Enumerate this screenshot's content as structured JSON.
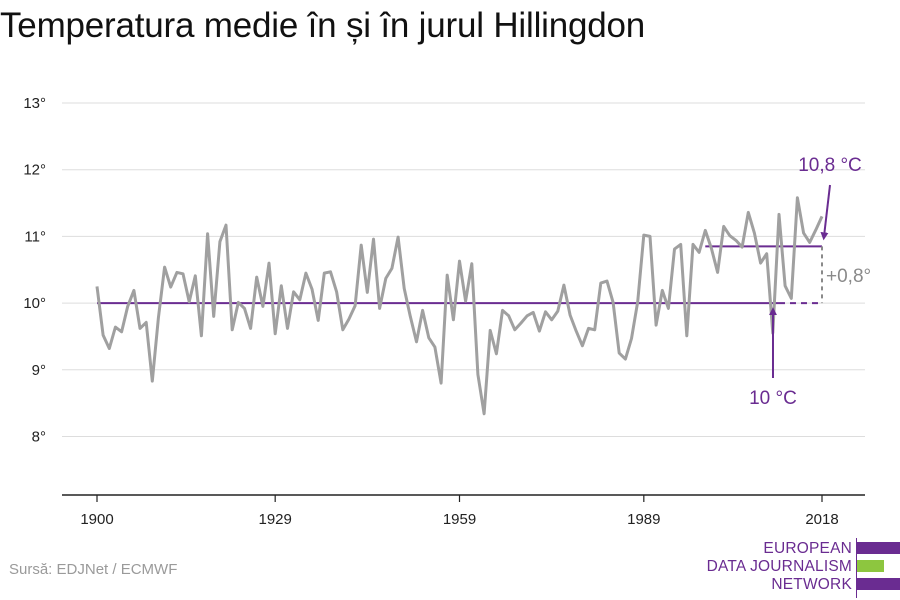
{
  "title": "Temperatura medie în și în jurul Hillingdon",
  "source": "Sursă: EDJNet / ECMWF",
  "logo": {
    "line1": "EUROPEAN",
    "line2": "DATA JOURNALISM",
    "line3": "NETWORK",
    "colors": {
      "purple": "#6a2c91",
      "green": "#8dc63f"
    }
  },
  "colors": {
    "series": "#a0a0a0",
    "baseline": "#6a2c91",
    "recent": "#6a2c91",
    "difference": "#8a8a8a",
    "grid": "#dddddd",
    "axis": "#222222"
  },
  "chart_data": {
    "type": "line",
    "title": "Temperatura medie în și în jurul Hillingdon",
    "xlabel": "",
    "ylabel": "",
    "xlim": [
      1900,
      2018
    ],
    "ylim": [
      7,
      13.3
    ],
    "x_ticks": [
      1900,
      1929,
      1959,
      1989,
      2018
    ],
    "x_tick_labels": [
      "1900",
      "1929",
      "1959",
      "1989",
      "2018"
    ],
    "y_ticks": [
      8,
      9,
      10,
      11,
      12,
      13
    ],
    "y_tick_labels": [
      "8°",
      "9°",
      "10°",
      "11°",
      "12°",
      "13°"
    ],
    "grid": true,
    "series": [
      {
        "x": [
          1900,
          1901,
          1902,
          1903,
          1904,
          1905,
          1906,
          1907,
          1908,
          1909,
          1910,
          1911,
          1912,
          1913,
          1914,
          1915,
          1916,
          1917,
          1918,
          1919,
          1920,
          1921,
          1922,
          1923,
          1924,
          1925,
          1926,
          1927,
          1928,
          1929,
          1930,
          1931,
          1932,
          1933,
          1934,
          1935,
          1936,
          1937,
          1938,
          1939,
          1940,
          1941,
          1942,
          1943,
          1944,
          1945,
          1946,
          1947,
          1948,
          1949,
          1950,
          1951,
          1952,
          1953,
          1954,
          1955,
          1956,
          1957,
          1958,
          1959,
          1960,
          1961,
          1962,
          1963,
          1964,
          1965,
          1966,
          1967,
          1968,
          1969,
          1970,
          1971,
          1972,
          1973,
          1974,
          1975,
          1976,
          1977,
          1978,
          1979,
          1980,
          1981,
          1982,
          1983,
          1984,
          1985,
          1986,
          1987,
          1988,
          1989,
          1990,
          1991,
          1992,
          1993,
          1994,
          1995,
          1996,
          1997,
          1998,
          1999,
          2000,
          2001,
          2002,
          2003,
          2004,
          2005,
          2006,
          2007,
          2008,
          2009,
          2010,
          2011,
          2012,
          2013,
          2014,
          2015,
          2016,
          2017,
          2018
        ],
        "values": [
          10.25,
          9.52,
          9.32,
          9.64,
          9.57,
          9.95,
          10.19,
          9.62,
          9.71,
          8.83,
          9.78,
          10.54,
          10.24,
          10.46,
          10.44,
          10.02,
          10.41,
          9.51,
          11.04,
          9.8,
          10.92,
          11.17,
          9.6,
          10.01,
          9.92,
          9.62,
          10.39,
          9.95,
          10.6,
          9.54,
          10.26,
          9.62,
          10.17,
          10.05,
          10.45,
          10.21,
          9.74,
          10.45,
          10.47,
          10.17,
          9.6,
          9.76,
          9.96,
          10.87,
          10.16,
          10.96,
          9.92,
          10.37,
          10.52,
          10.99,
          10.22,
          9.8,
          9.42,
          9.89,
          9.48,
          9.34,
          8.8,
          10.42,
          9.75,
          10.63,
          10.03,
          10.59,
          8.93,
          8.34,
          9.59,
          9.24,
          9.89,
          9.81,
          9.6,
          9.7,
          9.81,
          9.86,
          9.58,
          9.87,
          9.75,
          9.88,
          10.27,
          9.82,
          9.58,
          9.36,
          9.62,
          9.6,
          10.3,
          10.33,
          10.01,
          9.25,
          9.16,
          9.47,
          10.02,
          11.02,
          11.0,
          9.67,
          10.19,
          9.92,
          10.81,
          10.88,
          9.51,
          10.88,
          10.76,
          11.09,
          10.82,
          10.46,
          11.15,
          11.01,
          10.94,
          10.84,
          11.36,
          11.05,
          10.6,
          10.74,
          9.55,
          11.33,
          10.26,
          10.07,
          11.58,
          11.05,
          10.91,
          11.1,
          11.3
        ]
      }
    ],
    "reference_lines": [
      {
        "label": "10 °C",
        "value": 10.0
      },
      {
        "label": "10,8 °C",
        "value": 10.85
      }
    ],
    "difference_label": "+0,8°"
  }
}
